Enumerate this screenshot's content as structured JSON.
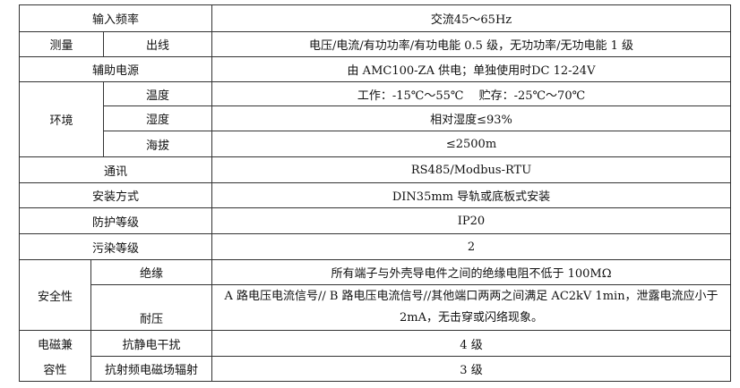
{
  "rows": {
    "input_freq": {
      "label": "输入频率",
      "value": "交流45～65Hz"
    },
    "measure": {
      "group": "测量",
      "label": "出线",
      "value": "电压/电流/有功功率/有功电能 0.5 级，无功功率/无功电能 1 级"
    },
    "aux_power": {
      "label": "辅助电源",
      "value": "由 AMC100-ZA 供电；单独使用时DC 12-24V"
    },
    "env": {
      "group": "环境",
      "temp": {
        "label": "温度",
        "value": "工作：-15℃～55℃　 贮存：-25℃～70℃"
      },
      "humidity": {
        "label": "湿度",
        "value": "相对湿度≤93%"
      },
      "altitude": {
        "label": "海拔",
        "value": "≤2500m"
      }
    },
    "comm": {
      "label": "通讯",
      "value": "RS485/Modbus-RTU"
    },
    "install": {
      "label": "安装方式",
      "value": "DIN35mm 导轨或底板式安装"
    },
    "protection": {
      "label": "防护等级",
      "value": "IP20"
    },
    "pollution": {
      "label": "污染等级",
      "value": "2"
    },
    "safety": {
      "group": "安全性",
      "insulation": {
        "label": "绝缘",
        "value": "所有端子与外壳导电件之间的绝缘电阻不低于 100MΩ"
      },
      "withstand": {
        "label": "耐压",
        "value": "A 路电压电流信号// B 路电压电流信号//其他端口两两之间满足 AC2kV 1min，泄露电流应小于 2mA，无击穿或闪络现象。"
      }
    },
    "emc": {
      "group_line1": "电磁兼",
      "group_line2": "容性",
      "esd": {
        "label": "抗静电干扰",
        "value": "4 级"
      },
      "rf": {
        "label": "抗射频电磁场辐射",
        "value": "3 级"
      }
    }
  }
}
